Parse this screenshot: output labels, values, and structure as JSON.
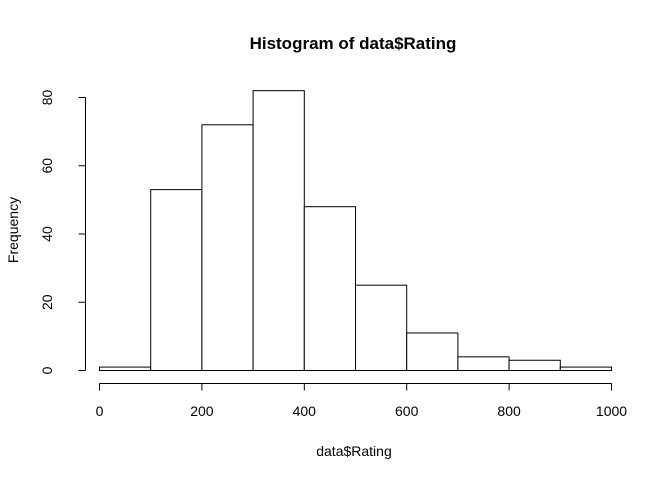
{
  "chart_data": {
    "type": "bar",
    "title": "Histogram of data$Rating",
    "xlabel": "data$Rating",
    "ylabel": "Frequency",
    "bins": [
      {
        "start": 0,
        "end": 100,
        "count": 1
      },
      {
        "start": 100,
        "end": 200,
        "count": 53
      },
      {
        "start": 200,
        "end": 300,
        "count": 72
      },
      {
        "start": 300,
        "end": 400,
        "count": 82
      },
      {
        "start": 400,
        "end": 500,
        "count": 48
      },
      {
        "start": 500,
        "end": 600,
        "count": 25
      },
      {
        "start": 600,
        "end": 700,
        "count": 11
      },
      {
        "start": 700,
        "end": 800,
        "count": 4
      },
      {
        "start": 800,
        "end": 900,
        "count": 3
      },
      {
        "start": 900,
        "end": 1000,
        "count": 1
      }
    ],
    "xlim": [
      0,
      1000
    ],
    "ylim": [
      0,
      82
    ],
    "xticks": [
      0,
      200,
      400,
      600,
      800,
      1000
    ],
    "yticks": [
      0,
      20,
      40,
      60,
      80
    ],
    "grid": false,
    "legend": "none"
  }
}
